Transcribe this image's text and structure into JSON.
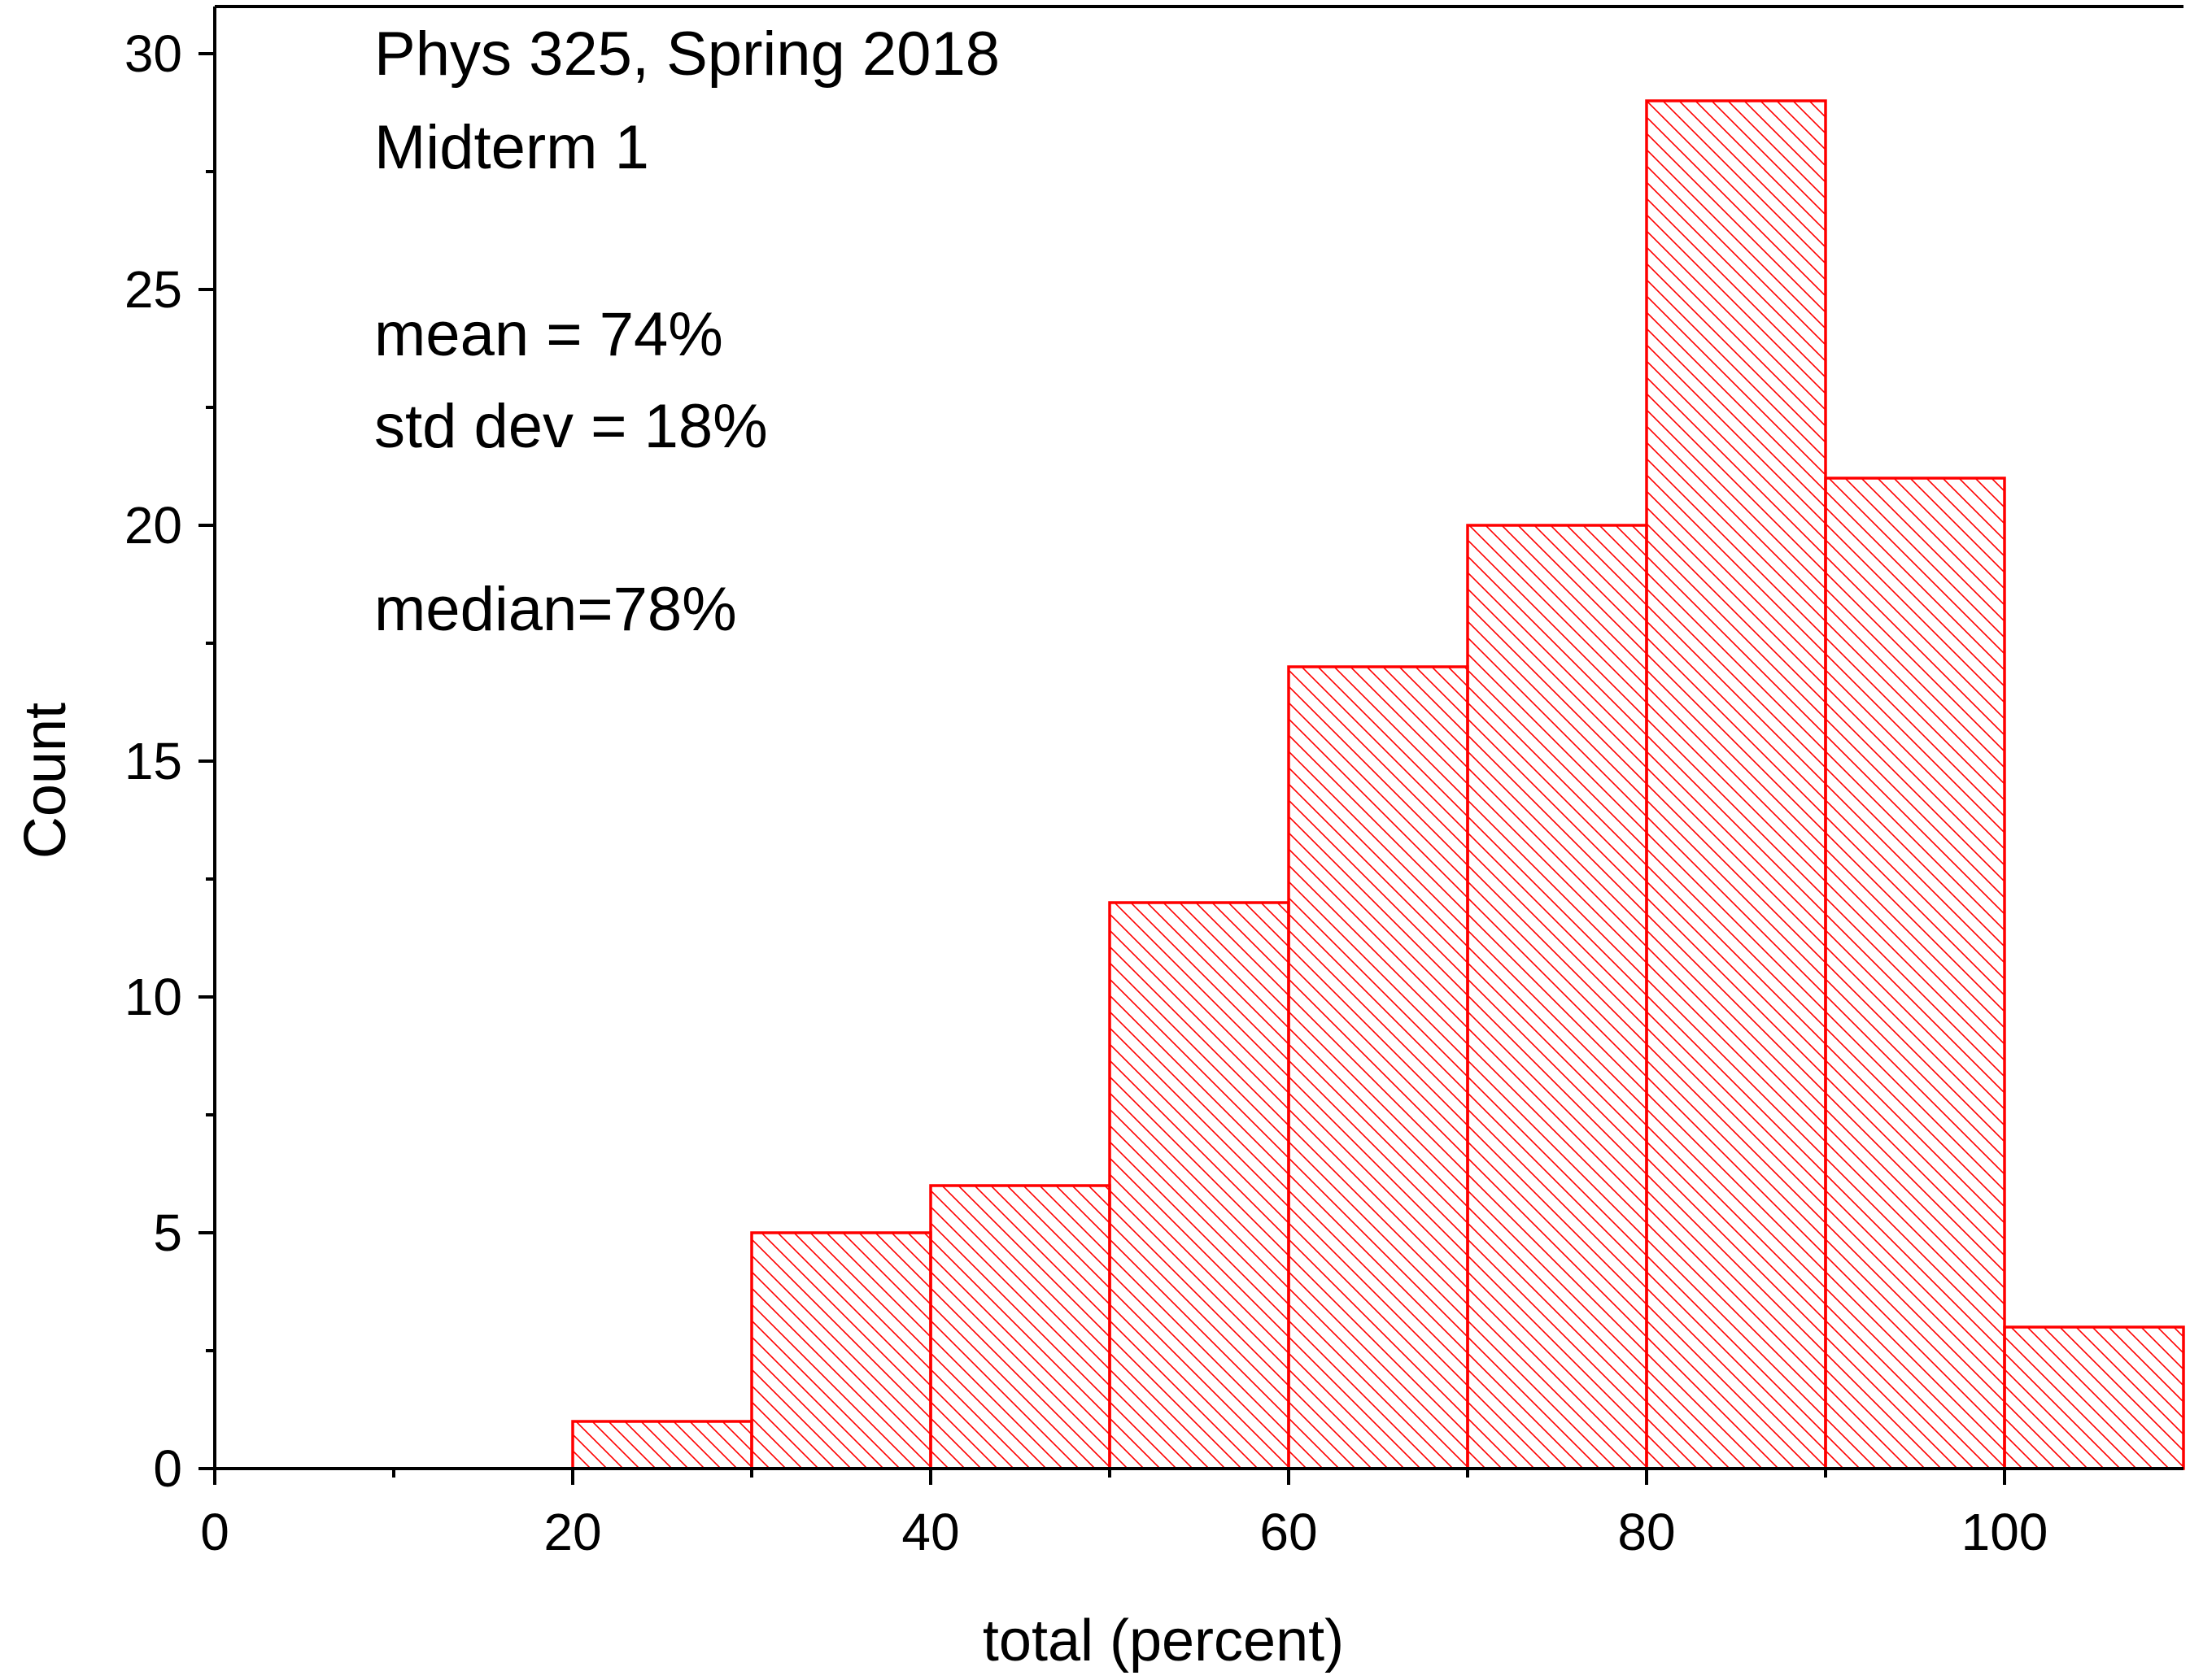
{
  "chart_data": {
    "type": "bar",
    "title": "",
    "annotations": {
      "line1": "Phys 325, Spring 2018",
      "line2": "Midterm 1",
      "line3": "mean = 74%",
      "line4": "std dev = 18%",
      "line5": "median=78%"
    },
    "xlabel": "total (percent)",
    "ylabel": "Count",
    "xlim": [
      0,
      110
    ],
    "ylim": [
      0,
      31
    ],
    "xticks": [
      0,
      20,
      40,
      60,
      80,
      100
    ],
    "xtick_labels": [
      "0",
      "20",
      "40",
      "60",
      "80",
      "100"
    ],
    "yticks": [
      0,
      5,
      10,
      15,
      20,
      25,
      30
    ],
    "ytick_labels": [
      "0",
      "5",
      "10",
      "15",
      "20",
      "25",
      "30"
    ],
    "bin_width": 10,
    "bins": [
      {
        "start": 20,
        "end": 30,
        "count": 1
      },
      {
        "start": 30,
        "end": 40,
        "count": 5
      },
      {
        "start": 40,
        "end": 50,
        "count": 6
      },
      {
        "start": 50,
        "end": 60,
        "count": 12
      },
      {
        "start": 60,
        "end": 70,
        "count": 17
      },
      {
        "start": 70,
        "end": 80,
        "count": 20
      },
      {
        "start": 80,
        "end": 90,
        "count": 29
      },
      {
        "start": 90,
        "end": 100,
        "count": 21
      },
      {
        "start": 100,
        "end": 110,
        "count": 3
      }
    ],
    "bar_style": "diagonal hatch",
    "color": "#ff0000",
    "axis_color": "#000000",
    "grid": false,
    "legend": "none"
  }
}
